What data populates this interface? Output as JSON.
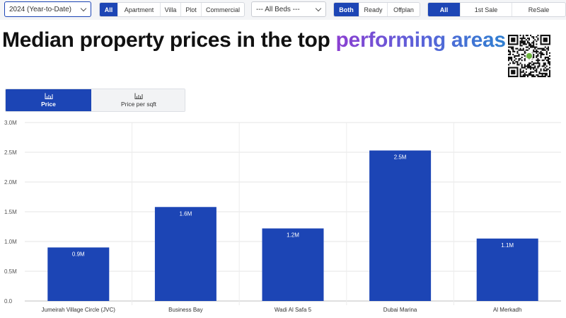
{
  "filters": {
    "year_select": {
      "value": "2024 (Year-to-Date)"
    },
    "property_types": [
      {
        "label": "All",
        "active": true
      },
      {
        "label": "Apartment",
        "active": false
      },
      {
        "label": "Villa",
        "active": false
      },
      {
        "label": "Plot",
        "active": false
      },
      {
        "label": "Commercial",
        "active": false
      }
    ],
    "beds_select": {
      "value": "--- All Beds ---"
    },
    "status": [
      {
        "label": "Both",
        "active": true
      },
      {
        "label": "Ready",
        "active": false
      },
      {
        "label": "Offplan",
        "active": false
      }
    ],
    "sale_type": [
      {
        "label": "All",
        "active": true
      },
      {
        "label": "1st Sale",
        "active": false
      },
      {
        "label": "ReSale",
        "active": false
      }
    ]
  },
  "title": {
    "main": "Median property prices in the top ",
    "accent": "performing areas"
  },
  "tabs": [
    {
      "label": "Price",
      "active": true,
      "icon": "bar-chart-icon"
    },
    {
      "label": "Price per sqft",
      "active": false,
      "icon": "bar-chart-icon"
    }
  ],
  "colors": {
    "primary": "#1c45b5",
    "accent_start": "#8b3fd1",
    "accent_end": "#2f7fd0"
  },
  "chart_data": {
    "type": "bar",
    "categories": [
      "Jumeirah Village Circle (JVC)",
      "Business Bay",
      "Wadi Al Safa 5",
      "Dubai Marina",
      "Al Merkadh"
    ],
    "values": [
      0.9,
      1.58,
      1.22,
      2.53,
      1.05
    ],
    "data_labels": [
      "0.9M",
      "1.6M",
      "1.2M",
      "2.5M",
      "1.1M"
    ],
    "yticks": [
      "0.0",
      "0.5M",
      "1.0M",
      "1.5M",
      "2.0M",
      "2.5M",
      "3.0M"
    ],
    "ylim": [
      0,
      3.0
    ],
    "grid": true,
    "color": "#1c45b5"
  }
}
